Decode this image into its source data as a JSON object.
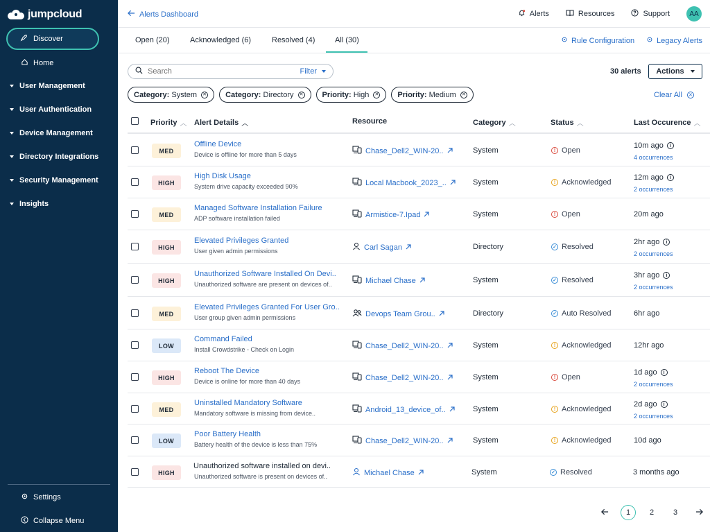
{
  "sidebar": {
    "brand": "jumpcloud",
    "discover": "Discover",
    "home": "Home",
    "sections": [
      "User Management",
      "User Authentication",
      "Device Management",
      "Directory Integrations",
      "Security Management",
      "Insights"
    ],
    "settings": "Settings",
    "collapse": "Collapse Menu"
  },
  "header": {
    "breadcrumb": "Alerts Dashboard",
    "alerts": "Alerts",
    "resources": "Resources",
    "support": "Support",
    "avatar": "AA"
  },
  "tabs": {
    "open": "Open (20)",
    "acknowledged": "Acknowledged (6)",
    "resolved": "Resolved (4)",
    "all": "All (30)",
    "rule_config": "Rule Configuration",
    "legacy": "Legacy Alerts"
  },
  "toolbar": {
    "search_placeholder": "Search",
    "filter": "Filter",
    "count": "30 alerts",
    "actions": "Actions",
    "clear_all": "Clear All"
  },
  "chips": [
    {
      "key": "Category:",
      "value": "System"
    },
    {
      "key": "Category:",
      "value": "Directory"
    },
    {
      "key": "Priority:",
      "value": "High"
    },
    {
      "key": "Priority:",
      "value": "Medium"
    }
  ],
  "columns": {
    "priority": "Priority",
    "details": "Alert Details",
    "resource": "Resource",
    "category": "Category",
    "status": "Status",
    "last": "Last Occurence"
  },
  "rows": [
    {
      "priority": "MED",
      "title": "Offline Device",
      "desc": "Device is offline for more than 5 days",
      "resource": "Chase_Dell2_WIN-20..",
      "rtype": "device",
      "category": "System",
      "status": "Open",
      "last": "10m ago",
      "occ": "4 occurrences"
    },
    {
      "priority": "HIGH",
      "title": "High Disk Usage",
      "desc": "System drive capacity exceeded 90%",
      "resource": "Local Macbook_2023_..",
      "rtype": "device",
      "category": "System",
      "status": "Acknowledged",
      "last": "12m ago",
      "occ": "2 occurrences"
    },
    {
      "priority": "MED",
      "title": "Managed Software Installation Failure",
      "desc": "ADP software installation failed",
      "resource": "Armistice-7.Ipad",
      "rtype": "device",
      "category": "System",
      "status": "Open",
      "last": "20m ago",
      "occ": ""
    },
    {
      "priority": "HIGH",
      "title": "Elevated Privileges Granted",
      "desc": "User given admin permissions",
      "resource": "Carl Sagan",
      "rtype": "user",
      "category": "Directory",
      "status": "Resolved",
      "last": "2hr ago",
      "occ": "2 occurrences"
    },
    {
      "priority": "HIGH",
      "title": "Unauthorized Software Installed On Devi..",
      "desc": "Unauthorized software are present on devices of..",
      "resource": "Michael Chase",
      "rtype": "device",
      "category": "System",
      "status": "Resolved",
      "last": "3hr ago",
      "occ": "2 occurrences"
    },
    {
      "priority": "MED",
      "title": "Elevated Privileges Granted For User Gro..",
      "desc": "User group given admin permissions",
      "resource": "Devops Team Grou..",
      "rtype": "group",
      "category": "Directory",
      "status": "Auto Resolved",
      "last": "6hr ago",
      "occ": ""
    },
    {
      "priority": "LOW",
      "title": "Command Failed",
      "desc": "Install Crowdstrike - Check on Login",
      "resource": "Chase_Dell2_WIN-20..",
      "rtype": "device",
      "category": "System",
      "status": "Acknowledged",
      "last": "12hr ago",
      "occ": ""
    },
    {
      "priority": "HIGH",
      "title": "Reboot The Device",
      "desc": "Device is online for more than 40 days",
      "resource": "Chase_Dell2_WIN-20..",
      "rtype": "device",
      "category": "System",
      "status": "Open",
      "last": "1d ago",
      "occ": "2 occurrences"
    },
    {
      "priority": "MED",
      "title": "Uninstalled Mandatory Software",
      "desc": "Mandatory software is missing from device..",
      "resource": "Android_13_device_of..",
      "rtype": "device",
      "category": "System",
      "status": "Acknowledged",
      "last": "2d ago",
      "occ": "2 occurrences"
    },
    {
      "priority": "LOW",
      "title": "Poor Battery Health",
      "desc": "Battery health of the device is less than 75%",
      "resource": "Chase_Dell2_WIN-20..",
      "rtype": "device",
      "category": "System",
      "status": "Acknowledged",
      "last": "10d ago",
      "occ": ""
    },
    {
      "priority": "HIGH",
      "title": "Unauthorized software installed on devi..",
      "desc": "Unauthorized software is present on devices of..",
      "resource": "Michael Chase",
      "rtype": "user",
      "category": "System",
      "status": "Resolved",
      "last": "3 months ago",
      "occ": "",
      "plain": true
    }
  ],
  "pagination": {
    "pages": [
      "1",
      "2",
      "3"
    ],
    "current": "1"
  }
}
